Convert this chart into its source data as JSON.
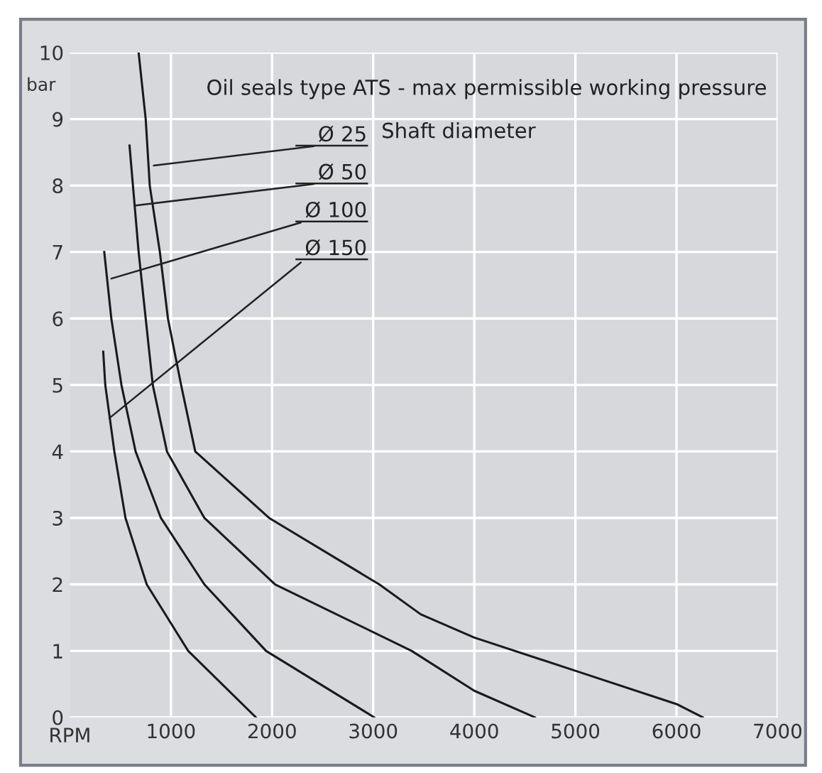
{
  "chart_data": {
    "type": "line",
    "title": "Oil seals type ATS - max permissible working pressure",
    "xlabel": "RPM",
    "ylabel": "bar",
    "xlim": [
      0,
      7000
    ],
    "ylim": [
      0,
      10
    ],
    "xticks": [
      1000,
      2000,
      3000,
      4000,
      5000,
      6000,
      7000
    ],
    "yticks": [
      0,
      1,
      2,
      3,
      4,
      5,
      6,
      7,
      8,
      9,
      10
    ],
    "grid": true,
    "marker": "none",
    "line_style": "solid",
    "series": [
      {
        "color": "#1a1a1a",
        "x": [
          680,
          750,
          790,
          890,
          970,
          1100,
          1240,
          1970,
          3060,
          3470,
          4000,
          5000,
          6000,
          6260
        ],
        "values": [
          10,
          9,
          8,
          7,
          6,
          5,
          4,
          3,
          2,
          1.55,
          1.2,
          0.7,
          0.2,
          0
        ]
      },
      {
        "color": "#1a1a1a",
        "x": [
          590,
          680,
          750,
          820,
          960,
          1330,
          2030,
          3380,
          4000,
          4600
        ],
        "values": [
          8.6,
          7,
          6,
          5,
          4,
          3,
          2,
          1,
          0.4,
          0
        ]
      },
      {
        "color": "#1a1a1a",
        "x": [
          340,
          410,
          510,
          650,
          900,
          1330,
          1940,
          3010
        ],
        "values": [
          7,
          6,
          5,
          4,
          3,
          2,
          1,
          0
        ]
      },
      {
        "color": "#1a1a1a",
        "x": [
          330,
          350,
          440,
          550,
          760,
          1170,
          1840
        ],
        "values": [
          5.5,
          5,
          4,
          3,
          2,
          1,
          0
        ]
      }
    ],
    "annotations": [
      {
        "text": "Ø 25",
        "x": 830,
        "y": 8.3
      },
      {
        "text": "Ø 50",
        "x": 650,
        "y": 7.7
      },
      {
        "text": "Ø 100",
        "x": 410,
        "y": 6.6
      },
      {
        "text": "Ø 150",
        "x": 390,
        "y": 4.5
      },
      "Shaft diameter"
    ]
  }
}
